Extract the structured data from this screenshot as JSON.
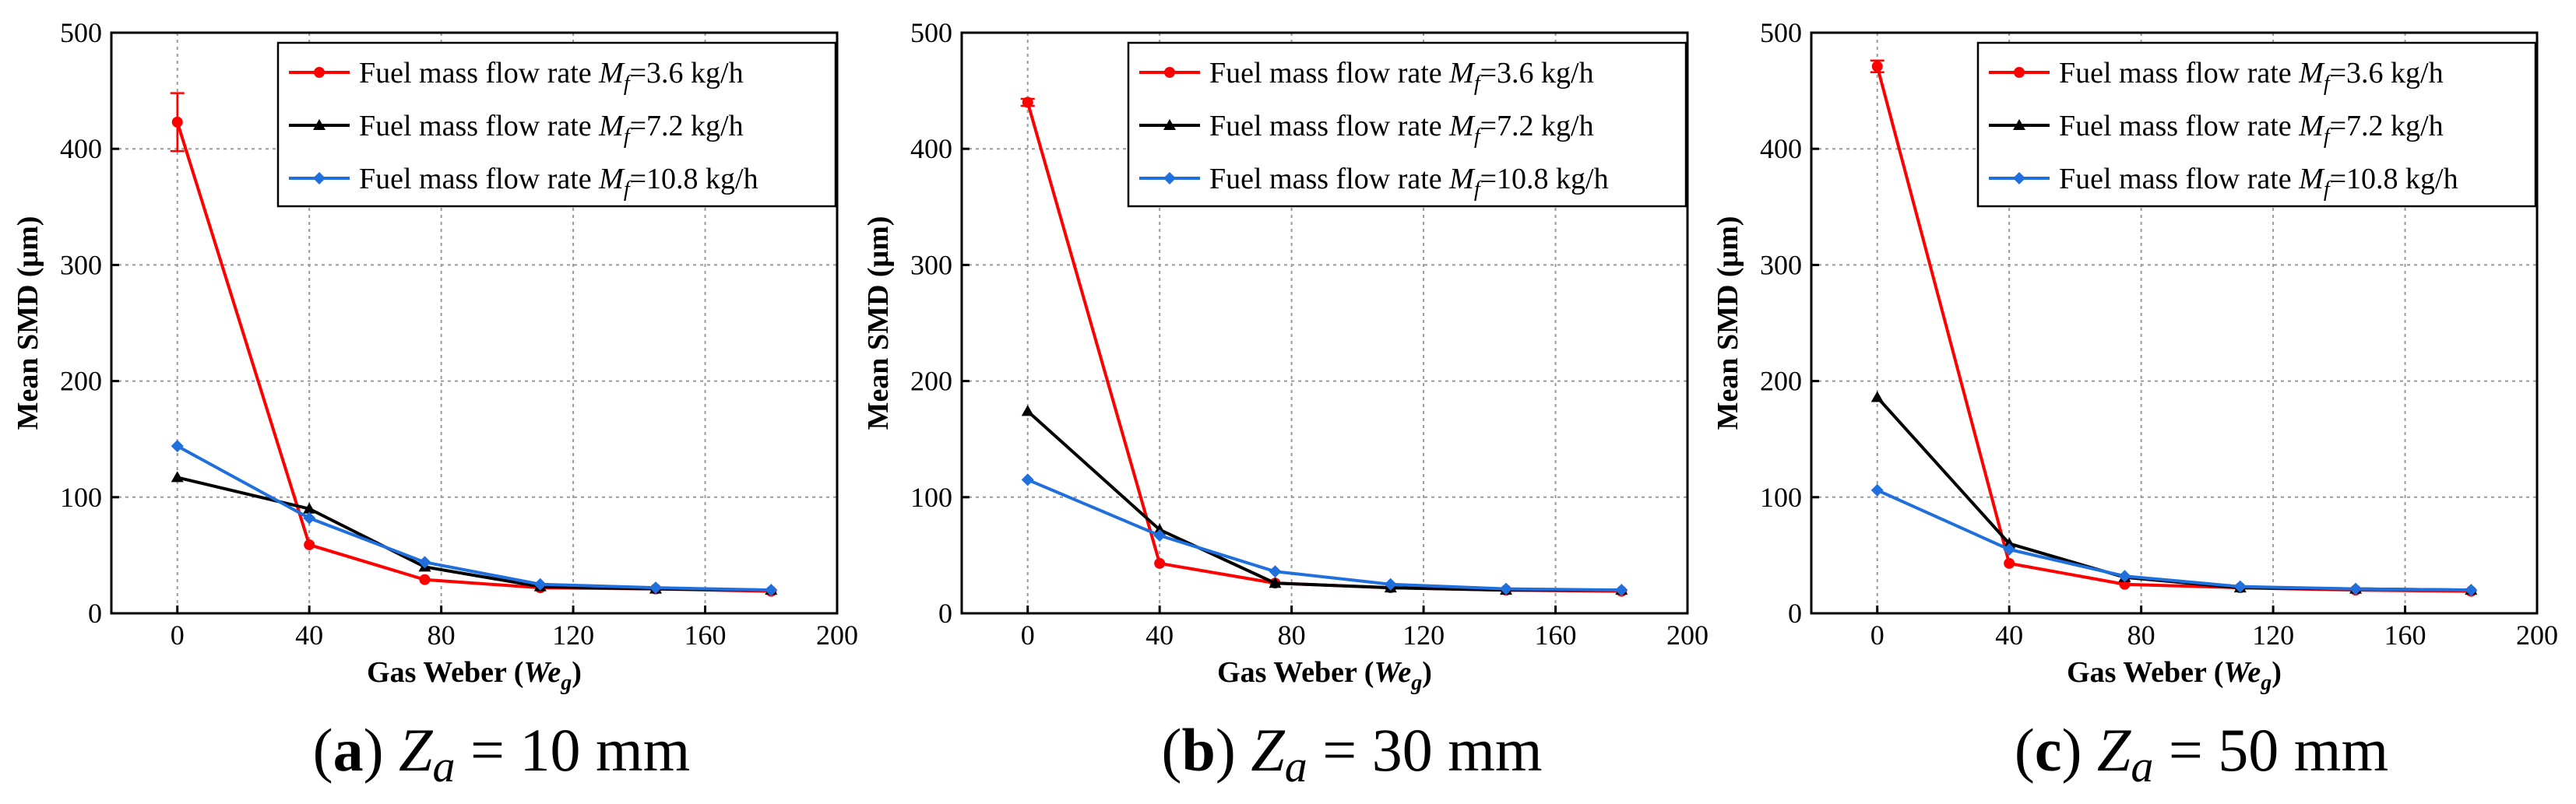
{
  "colors": {
    "series_red": "#ff0000",
    "series_black": "#000000",
    "series_blue": "#1f6fdc"
  },
  "legend_labels": [
    {
      "prefix": "Fuel mass flow rate ",
      "var": "M",
      "sub": "f",
      "suffix": "=3.6 kg/h"
    },
    {
      "prefix": "Fuel mass flow rate ",
      "var": "M",
      "sub": "f",
      "suffix": "=7.2 kg/h"
    },
    {
      "prefix": "Fuel mass flow rate ",
      "var": "M",
      "sub": "f",
      "suffix": "=10.8 kg/h"
    }
  ],
  "chart_data": [
    {
      "type": "line",
      "panel": "a",
      "caption": {
        "letter": "(a)",
        "var": "Z",
        "sub": "a",
        "text": "= 10 mm"
      },
      "xlabel": {
        "prefix": "Gas Weber (",
        "var": "We",
        "sub": "g",
        "suffix": ")"
      },
      "ylabel": "Mean SMD (μm)",
      "xlim": [
        -20,
        200
      ],
      "ylim": [
        0,
        500
      ],
      "xticks": [
        "0",
        "40",
        "80",
        "120",
        "160",
        "200"
      ],
      "yticks": [
        "0",
        "100",
        "200",
        "300",
        "400",
        "500"
      ],
      "grid": true,
      "legend_position": "top-right",
      "x": [
        0,
        40,
        75,
        110,
        145,
        180
      ],
      "series": [
        {
          "name": "Fuel mass flow rate Mf=3.6 kg/h",
          "values": [
            423,
            59,
            29,
            22,
            21,
            19
          ],
          "errors": [
            25,
            0,
            0,
            0,
            0,
            0
          ]
        },
        {
          "name": "Fuel mass flow rate Mf=7.2 kg/h",
          "values": [
            117,
            90,
            40,
            23,
            21,
            20
          ],
          "errors": [
            0,
            0,
            0,
            0,
            0,
            0
          ]
        },
        {
          "name": "Fuel mass flow rate Mf=10.8 kg/h",
          "values": [
            144,
            82,
            44,
            25,
            22,
            20
          ],
          "errors": [
            0,
            0,
            0,
            0,
            0,
            0
          ]
        }
      ]
    },
    {
      "type": "line",
      "panel": "b",
      "caption": {
        "letter": "(b)",
        "var": "Z",
        "sub": "a",
        "text": "= 30 mm"
      },
      "xlabel": {
        "prefix": "Gas Weber (",
        "var": "We",
        "sub": "g",
        "suffix": ")"
      },
      "ylabel": "Mean SMD (μm)",
      "xlim": [
        -20,
        200
      ],
      "ylim": [
        0,
        500
      ],
      "xticks": [
        "0",
        "40",
        "80",
        "120",
        "160",
        "200"
      ],
      "yticks": [
        "0",
        "100",
        "200",
        "300",
        "400",
        "500"
      ],
      "grid": true,
      "legend_position": "top-right",
      "x": [
        0,
        40,
        75,
        110,
        145,
        180
      ],
      "series": [
        {
          "name": "Fuel mass flow rate Mf=3.6 kg/h",
          "values": [
            440,
            43,
            26,
            22,
            20,
            19
          ],
          "errors": [
            3,
            0,
            0,
            0,
            0,
            0
          ]
        },
        {
          "name": "Fuel mass flow rate Mf=7.2 kg/h",
          "values": [
            174,
            72,
            26,
            22,
            20,
            20
          ],
          "errors": [
            0,
            0,
            0,
            0,
            0,
            0
          ]
        },
        {
          "name": "Fuel mass flow rate Mf=10.8 kg/h",
          "values": [
            115,
            67,
            36,
            25,
            21,
            20
          ],
          "errors": [
            0,
            0,
            0,
            0,
            0,
            0
          ]
        }
      ]
    },
    {
      "type": "line",
      "panel": "c",
      "caption": {
        "letter": "(c)",
        "var": "Z",
        "sub": "a",
        "text": "= 50 mm"
      },
      "xlabel": {
        "prefix": "Gas Weber (",
        "var": "We",
        "sub": "g",
        "suffix": ")"
      },
      "ylabel": "Mean SMD (μm)",
      "xlim": [
        -20,
        200
      ],
      "ylim": [
        0,
        500
      ],
      "xticks": [
        "0",
        "40",
        "80",
        "120",
        "160",
        "200"
      ],
      "yticks": [
        "0",
        "100",
        "200",
        "300",
        "400",
        "500"
      ],
      "grid": true,
      "legend_position": "top-right",
      "x": [
        0,
        40,
        75,
        110,
        145,
        180
      ],
      "series": [
        {
          "name": "Fuel mass flow rate Mf=3.6 kg/h",
          "values": [
            471,
            43,
            25,
            22,
            20,
            19
          ],
          "errors": [
            5,
            0,
            0,
            0,
            0,
            0
          ]
        },
        {
          "name": "Fuel mass flow rate Mf=7.2 kg/h",
          "values": [
            186,
            60,
            31,
            22,
            21,
            20
          ],
          "errors": [
            0,
            0,
            0,
            0,
            0,
            0
          ]
        },
        {
          "name": "Fuel mass flow rate Mf=10.8 kg/h",
          "values": [
            106,
            55,
            32,
            23,
            21,
            20
          ],
          "errors": [
            0,
            0,
            0,
            0,
            0,
            0
          ]
        }
      ]
    }
  ]
}
